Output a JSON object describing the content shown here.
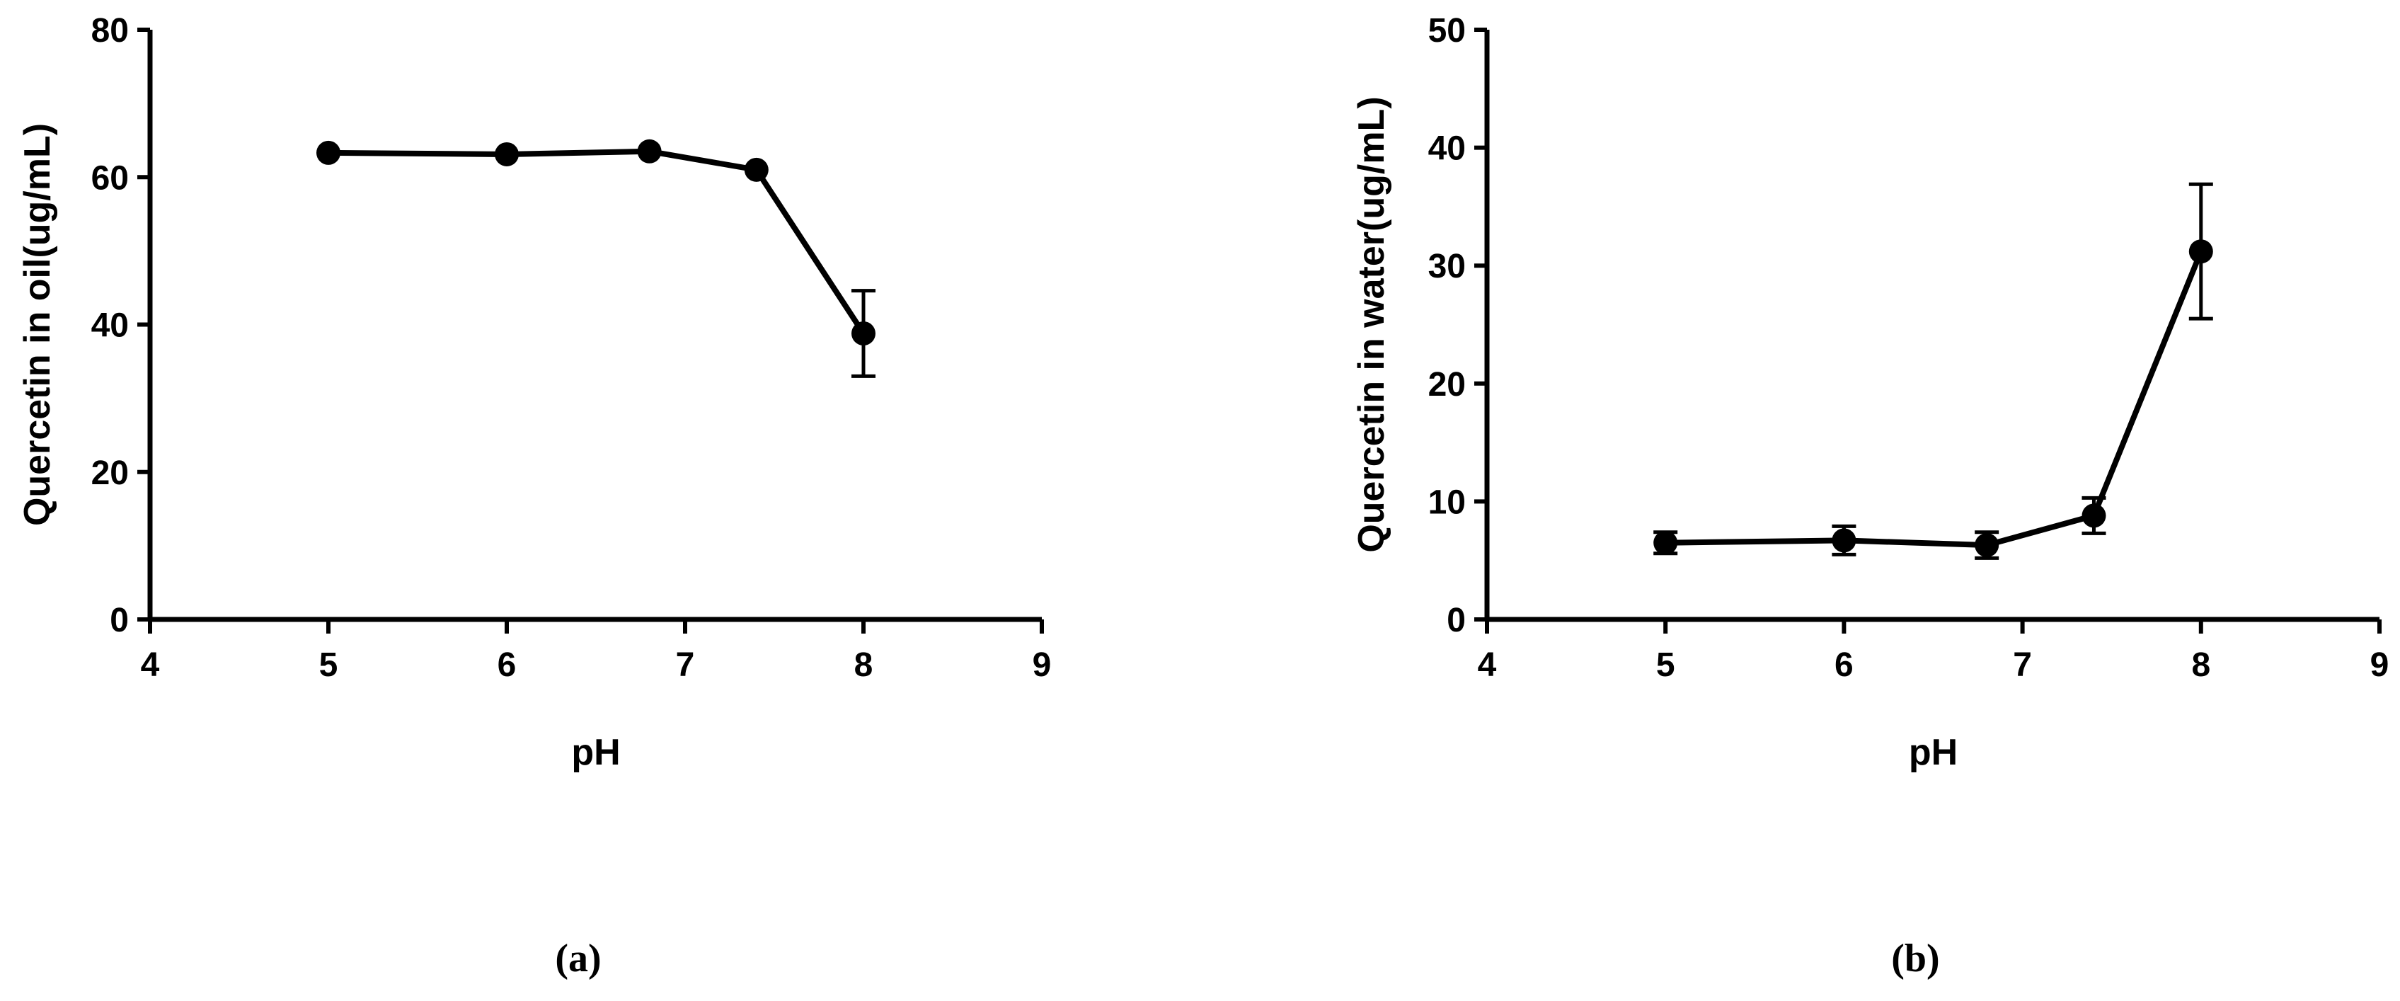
{
  "chart_data": [
    {
      "type": "line",
      "caption": "(a)",
      "xlabel": "pH",
      "ylabel": "Quercetin in oil(ug/mL)",
      "xlim": [
        4,
        9
      ],
      "ylim": [
        0,
        80
      ],
      "xticks": [
        4,
        5,
        6,
        7,
        8,
        9
      ],
      "yticks": [
        0,
        20,
        40,
        60,
        80
      ],
      "grid": false,
      "color": "#000000",
      "series": [
        {
          "x": [
            5,
            6,
            6.8,
            7.4,
            8
          ],
          "y": [
            63.3,
            63.1,
            63.5,
            61.0,
            38.8
          ],
          "error": [
            0.5,
            0.5,
            0.5,
            0.5,
            5.8
          ]
        }
      ]
    },
    {
      "type": "line",
      "caption": "(b)",
      "xlabel": "pH",
      "ylabel": "Quercetin in water(ug/mL)",
      "xlim": [
        4,
        9
      ],
      "ylim": [
        0,
        50
      ],
      "xticks": [
        4,
        5,
        6,
        7,
        8,
        9
      ],
      "yticks": [
        0,
        10,
        20,
        30,
        40,
        50
      ],
      "grid": false,
      "color": "#000000",
      "series": [
        {
          "x": [
            5,
            6,
            6.8,
            7.4,
            8
          ],
          "y": [
            6.5,
            6.7,
            6.3,
            8.8,
            31.2
          ],
          "error": [
            0.9,
            1.2,
            1.1,
            1.5,
            5.7
          ]
        }
      ]
    }
  ]
}
